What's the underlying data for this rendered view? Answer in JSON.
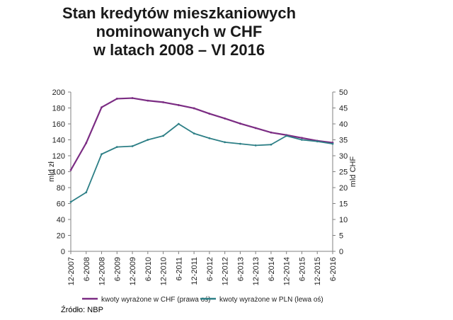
{
  "chart_data": {
    "type": "line",
    "title": [
      "Stan kredytów mieszkaniowych",
      "nominowanych w CHF",
      "w latach 2008 – VI 2016"
    ],
    "xlabel": "",
    "ylabel_left": "mld zł",
    "ylabel_right": "mld CHF",
    "ylim_left": [
      0,
      200
    ],
    "ylim_right": [
      0,
      50
    ],
    "yticks_left": [
      "0",
      "20",
      "40",
      "60",
      "80",
      "100",
      "120",
      "140",
      "160",
      "180",
      "200"
    ],
    "yticks_right": [
      "0",
      "5",
      "10",
      "15",
      "20",
      "25",
      "30",
      "35",
      "40",
      "45",
      "50"
    ],
    "categories": [
      "12-2007",
      "6-2008",
      "12-2008",
      "6-2009",
      "12-2009",
      "6-2010",
      "12-2010",
      "6-2011",
      "12-2011",
      "6-2012",
      "12-2012",
      "6-2013",
      "12-2013",
      "6-2014",
      "12-2014",
      "6-2015",
      "12-2015",
      "6-2016"
    ],
    "grid": false,
    "legend_position": "bottom",
    "series": [
      {
        "name": "kwoty wyrażone w CHF (prawa oś)",
        "axis": "right",
        "color": "#7b2c83",
        "values": [
          25.5,
          34.0,
          45.2,
          47.9,
          48.1,
          47.3,
          46.8,
          45.9,
          44.9,
          43.2,
          41.7,
          40.1,
          38.7,
          37.3,
          36.5,
          35.6,
          34.7,
          34.1
        ]
      },
      {
        "name": "kwoty wyrażone w PLN (lewa oś)",
        "axis": "left",
        "color": "#2d7f86",
        "values": [
          62,
          74,
          122,
          131,
          132,
          140,
          145,
          160,
          148,
          142,
          137,
          135,
          133,
          134,
          145,
          140,
          138,
          135
        ]
      }
    ]
  },
  "source": "Źródło: NBP",
  "colors": {
    "chf_line": "#7b2c83",
    "pln_line": "#2d7f86",
    "axis": "#808080",
    "text": "#222222"
  }
}
